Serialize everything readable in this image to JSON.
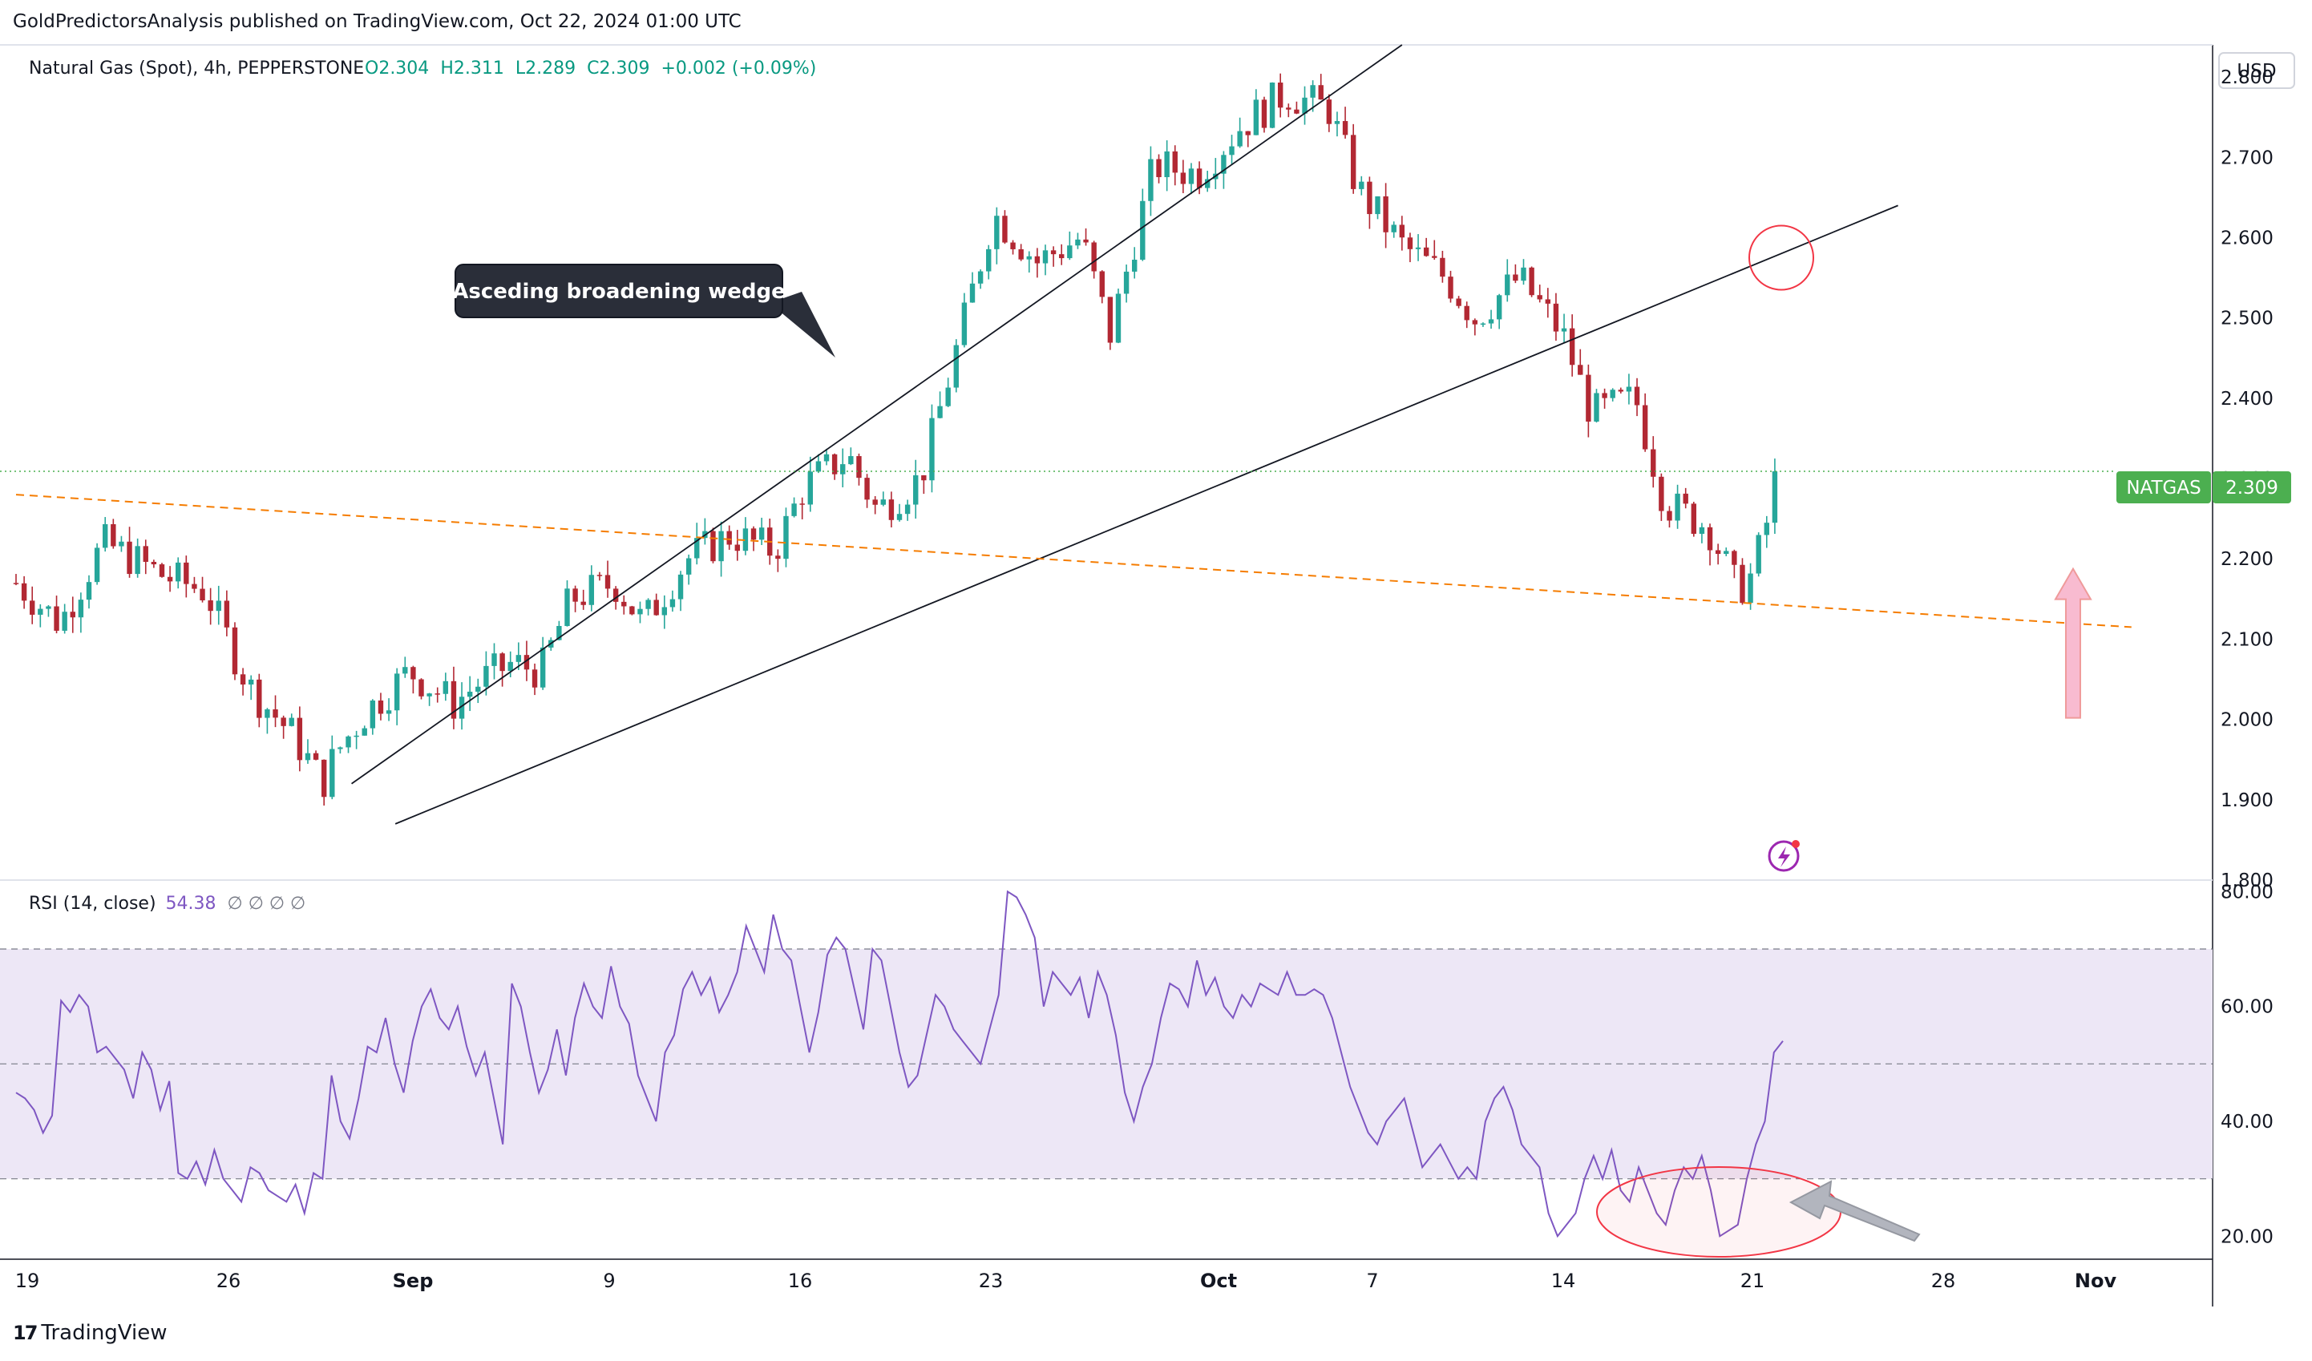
{
  "header": {
    "publisher": "GoldPredictorsAnalysis published on TradingView.com, Oct 22, 2024 01:00 UTC"
  },
  "legend": {
    "symbol": "Natural Gas (Spot), 4h, PEPPERSTONE",
    "open": "O2.304",
    "high": "H2.311",
    "low": "L2.289",
    "close": "C2.309",
    "change": "+0.002 (+0.09%)"
  },
  "rsi_legend": {
    "label": "RSI (14, close)",
    "value": "54.38",
    "placeholders": "∅  ∅  ∅  ∅"
  },
  "currency": "USD",
  "price_tag": {
    "symbol": "NATGAS",
    "value": "2.309"
  },
  "annotation": {
    "text": "Asceding broadening wedge"
  },
  "footer": {
    "brand": "TradingView"
  },
  "colors": {
    "up": "#26a69a",
    "down": "#b22833",
    "accent_green": "#4caf50",
    "rsi_line": "#7e57c2",
    "rsi_band": "#ede7f6",
    "support_line": "#f57c00",
    "annotation_bg": "#2a2e39"
  },
  "icons": [
    "tradingview-logo-icon",
    "lightning-icon"
  ],
  "chart_data": [
    {
      "type": "candlestick",
      "interval": "4h",
      "y_axis": {
        "ticks": [
          "2.800",
          "2.700",
          "2.600",
          "2.500",
          "2.400",
          "2.300",
          "2.200",
          "2.100",
          "2.000",
          "1.900",
          "1.800"
        ],
        "range": [
          1.8,
          2.84
        ]
      },
      "x_axis": {
        "ticks": [
          "19",
          "26",
          "Sep",
          "9",
          "16",
          "23",
          "Oct",
          "7",
          "14",
          "21",
          "28",
          "Nov"
        ]
      },
      "last_price": 2.309,
      "ohlc_path": [
        [
          0,
          2.17
        ],
        [
          3,
          2.12
        ],
        [
          6,
          2.22
        ],
        [
          10,
          2.18
        ],
        [
          13,
          2.16
        ],
        [
          16,
          2.04
        ],
        [
          19,
          1.98
        ],
        [
          21,
          1.92
        ],
        [
          22,
          1.96
        ],
        [
          24,
          2.01
        ],
        [
          27,
          2.06
        ],
        [
          30,
          2.02
        ],
        [
          32,
          2.05
        ],
        [
          34,
          2.07
        ],
        [
          36,
          2.06
        ],
        [
          38,
          2.15
        ],
        [
          41,
          2.17
        ],
        [
          43,
          2.12
        ],
        [
          46,
          2.2
        ],
        [
          49,
          2.23
        ],
        [
          52,
          2.21
        ],
        [
          54,
          2.29
        ],
        [
          57,
          2.33
        ],
        [
          59,
          2.26
        ],
        [
          62,
          2.3
        ],
        [
          64,
          2.43
        ],
        [
          67,
          2.63
        ],
        [
          70,
          2.57
        ],
        [
          73,
          2.6
        ],
        [
          75,
          2.48
        ],
        [
          78,
          2.69
        ],
        [
          81,
          2.68
        ],
        [
          84,
          2.74
        ],
        [
          87,
          2.78
        ],
        [
          90,
          2.76
        ],
        [
          92,
          2.66
        ],
        [
          95,
          2.59
        ],
        [
          98,
          2.55
        ],
        [
          100,
          2.5
        ],
        [
          103,
          2.55
        ],
        [
          106,
          2.48
        ],
        [
          108,
          2.38
        ],
        [
          111,
          2.4
        ],
        [
          113,
          2.27
        ],
        [
          116,
          2.24
        ],
        [
          118,
          2.16
        ],
        [
          119,
          2.18
        ],
        [
          121,
          2.309
        ]
      ],
      "annotations": [
        {
          "type": "trendline",
          "name": "wedge upper",
          "points": [
            [
              23,
              1.92
            ],
            [
              95,
              2.84
            ]
          ]
        },
        {
          "type": "trendline",
          "name": "wedge lower",
          "points": [
            [
              26,
              1.87
            ],
            [
              129,
              2.64
            ]
          ]
        },
        {
          "type": "dashed_line",
          "name": "support",
          "points": [
            [
              0,
              2.28
            ],
            [
              145,
              2.115
            ]
          ]
        },
        {
          "type": "circle",
          "name": "retest",
          "center": [
            121,
            2.575
          ]
        },
        {
          "type": "arrow_up",
          "name": "support arrow",
          "at": [
            141,
            2.0
          ]
        }
      ]
    },
    {
      "type": "line",
      "name": "RSI (14, close)",
      "y_axis": {
        "ticks": [
          "80.00",
          "60.00",
          "40.00",
          "20.00"
        ],
        "range": [
          16,
          82
        ]
      },
      "bands": {
        "upper": 70,
        "middle": 50,
        "lower": 30
      },
      "values": [
        45,
        44,
        42,
        38,
        41,
        61,
        59,
        62,
        60,
        52,
        53,
        51,
        49,
        44,
        52,
        49,
        42,
        47,
        31,
        30,
        33,
        29,
        35,
        30,
        28,
        26,
        32,
        31,
        28,
        27,
        26,
        29,
        24,
        31,
        30,
        48,
        40,
        37,
        44,
        53,
        52,
        58,
        50,
        45,
        54,
        60,
        63,
        58,
        56,
        60,
        53,
        48,
        52,
        44,
        36,
        64,
        60,
        52,
        45,
        49,
        56,
        48,
        58,
        64,
        60,
        58,
        67,
        60,
        57,
        48,
        44,
        40,
        52,
        55,
        63,
        66,
        62,
        65,
        59,
        62,
        66,
        74,
        70,
        66,
        76,
        70,
        68,
        60,
        52,
        59,
        69,
        72,
        70,
        63,
        56,
        70,
        68,
        60,
        52,
        46,
        48,
        55,
        62,
        60,
        56,
        54,
        52,
        50,
        56,
        62,
        80,
        79,
        76,
        72,
        60,
        66,
        64,
        62,
        65,
        58,
        66,
        62,
        55,
        45,
        40,
        46,
        50,
        58,
        64,
        63,
        60,
        68,
        62,
        65,
        60,
        58,
        62,
        60,
        64,
        63,
        62,
        66,
        62,
        62,
        63,
        62,
        58,
        52,
        46,
        42,
        38,
        36,
        40,
        42,
        44,
        38,
        32,
        34,
        36,
        33,
        30,
        32,
        30,
        40,
        44,
        46,
        42,
        36,
        34,
        32,
        24,
        20,
        22,
        24,
        30,
        34,
        30,
        35,
        28,
        26,
        32,
        28,
        24,
        22,
        28,
        32,
        30,
        34,
        28,
        20,
        21,
        22,
        30,
        36,
        40,
        52,
        54
      ]
    }
  ]
}
